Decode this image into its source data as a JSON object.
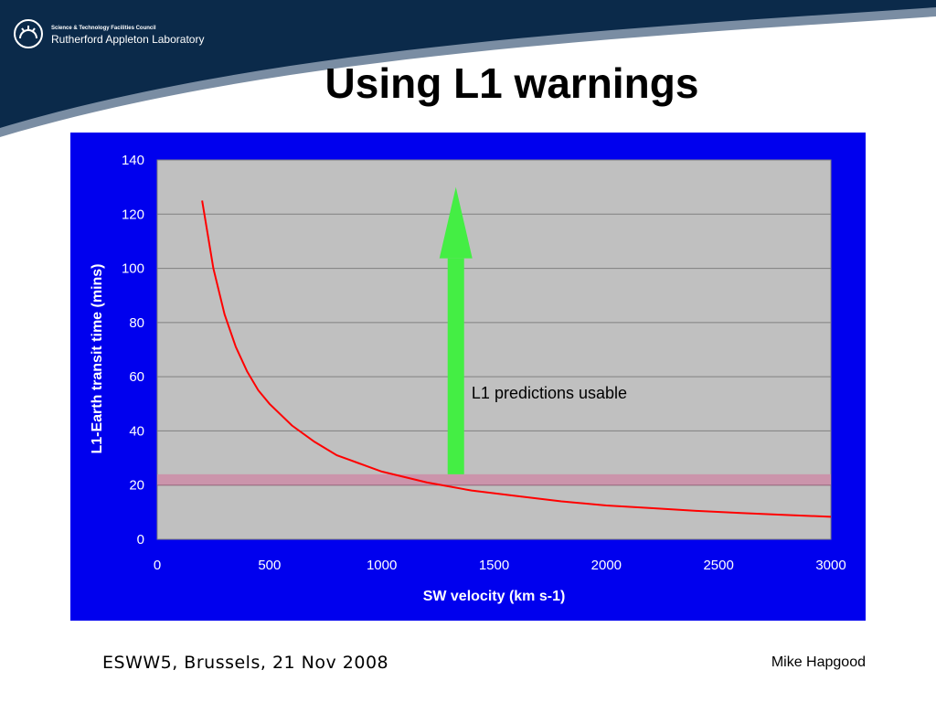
{
  "header": {
    "org_small": "Science & Technology Facilities Council",
    "org_main": "Rutherford Appleton Laboratory",
    "title": "Using L1 warnings"
  },
  "colors": {
    "banner": "#0b2a4a",
    "panel": "#0000ee",
    "plot_bg": "#c0c0c0",
    "curve": "#ff0000",
    "arrow": "#44ee44",
    "threshold_band": "#cc8fa8"
  },
  "chart_data": {
    "type": "line",
    "title": "",
    "xlabel": "SW velocity (km s-1)",
    "ylabel": "L1-Earth transit time (mins)",
    "xlim": [
      0,
      3000
    ],
    "ylim": [
      0,
      140
    ],
    "x_ticks": [
      0,
      500,
      1000,
      1500,
      2000,
      2500,
      3000
    ],
    "y_ticks": [
      0,
      20,
      40,
      60,
      80,
      100,
      120,
      140
    ],
    "grid": true,
    "series": [
      {
        "name": "L1-Earth transit time",
        "x": [
          200,
          250,
          300,
          350,
          400,
          450,
          500,
          600,
          700,
          800,
          900,
          1000,
          1200,
          1400,
          1600,
          1800,
          2000,
          2200,
          2400,
          2600,
          2800,
          3000
        ],
        "y": [
          125,
          100,
          83,
          71,
          62,
          55,
          50,
          42,
          36,
          31,
          28,
          25,
          21,
          18,
          16,
          14,
          12.5,
          11.5,
          10.5,
          9.7,
          9,
          8.3
        ]
      }
    ],
    "threshold_band": {
      "y_min": 20,
      "y_max": 24
    },
    "arrow": {
      "x": 1330,
      "y_from": 24,
      "y_to": 130
    },
    "annotations": [
      {
        "text": "L1 predictions usable",
        "x": 1400,
        "y": 54
      }
    ]
  },
  "footer": {
    "left": "ESWW5, Brussels, 21 Nov 2008",
    "right": "Mike Hapgood"
  }
}
